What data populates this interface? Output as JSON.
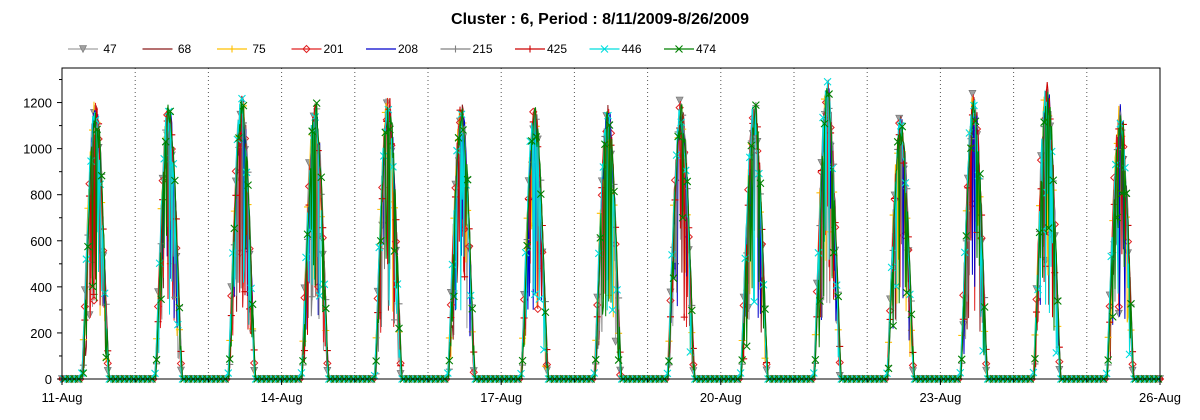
{
  "chart_data": {
    "type": "line",
    "title": "Cluster : 6, Period : 8/11/2009-8/26/2009",
    "xlabel": "",
    "ylabel": "",
    "x_range": [
      "2009-08-11",
      "2009-08-26"
    ],
    "x_tick_labels": [
      "11-Aug",
      "14-Aug",
      "17-Aug",
      "20-Aug",
      "23-Aug",
      "26-Aug"
    ],
    "ylim": [
      0,
      1350
    ],
    "y_ticks": [
      0,
      200,
      400,
      600,
      800,
      1000,
      1200
    ],
    "grid": "vertical dotted lines at day boundaries",
    "legend_position": "top",
    "series": [
      {
        "name": "47",
        "color": "#a0a0a0",
        "marker": "triangle-down"
      },
      {
        "name": "68",
        "color": "#8b1a1a",
        "marker": "none"
      },
      {
        "name": "75",
        "color": "#ffc000",
        "marker": "plus"
      },
      {
        "name": "201",
        "color": "#e02020",
        "marker": "diamond"
      },
      {
        "name": "208",
        "color": "#0000cc",
        "marker": "none"
      },
      {
        "name": "215",
        "color": "#808080",
        "marker": "plus"
      },
      {
        "name": "425",
        "color": "#cc0000",
        "marker": "plus"
      },
      {
        "name": "446",
        "color": "#00dddd",
        "marker": "x"
      },
      {
        "name": "474",
        "color": "#008000",
        "marker": "x"
      }
    ],
    "daily_peaks": [
      {
        "date": "2009-08-11",
        "peak": 1240
      },
      {
        "date": "2009-08-12",
        "peak": 1230
      },
      {
        "date": "2009-08-13",
        "peak": 1260
      },
      {
        "date": "2009-08-14",
        "peak": 1240
      },
      {
        "date": "2009-08-15",
        "peak": 1270
      },
      {
        "date": "2009-08-16",
        "peak": 1220
      },
      {
        "date": "2009-08-17",
        "peak": 1210
      },
      {
        "date": "2009-08-18",
        "peak": 1220
      },
      {
        "date": "2009-08-19",
        "peak": 1240
      },
      {
        "date": "2009-08-20",
        "peak": 1230
      },
      {
        "date": "2009-08-21",
        "peak": 1330
      },
      {
        "date": "2009-08-22",
        "peak": 1170
      },
      {
        "date": "2009-08-23",
        "peak": 1270
      },
      {
        "date": "2009-08-24",
        "peak": 1320
      },
      {
        "date": "2009-08-25",
        "peak": 1220
      }
    ]
  }
}
